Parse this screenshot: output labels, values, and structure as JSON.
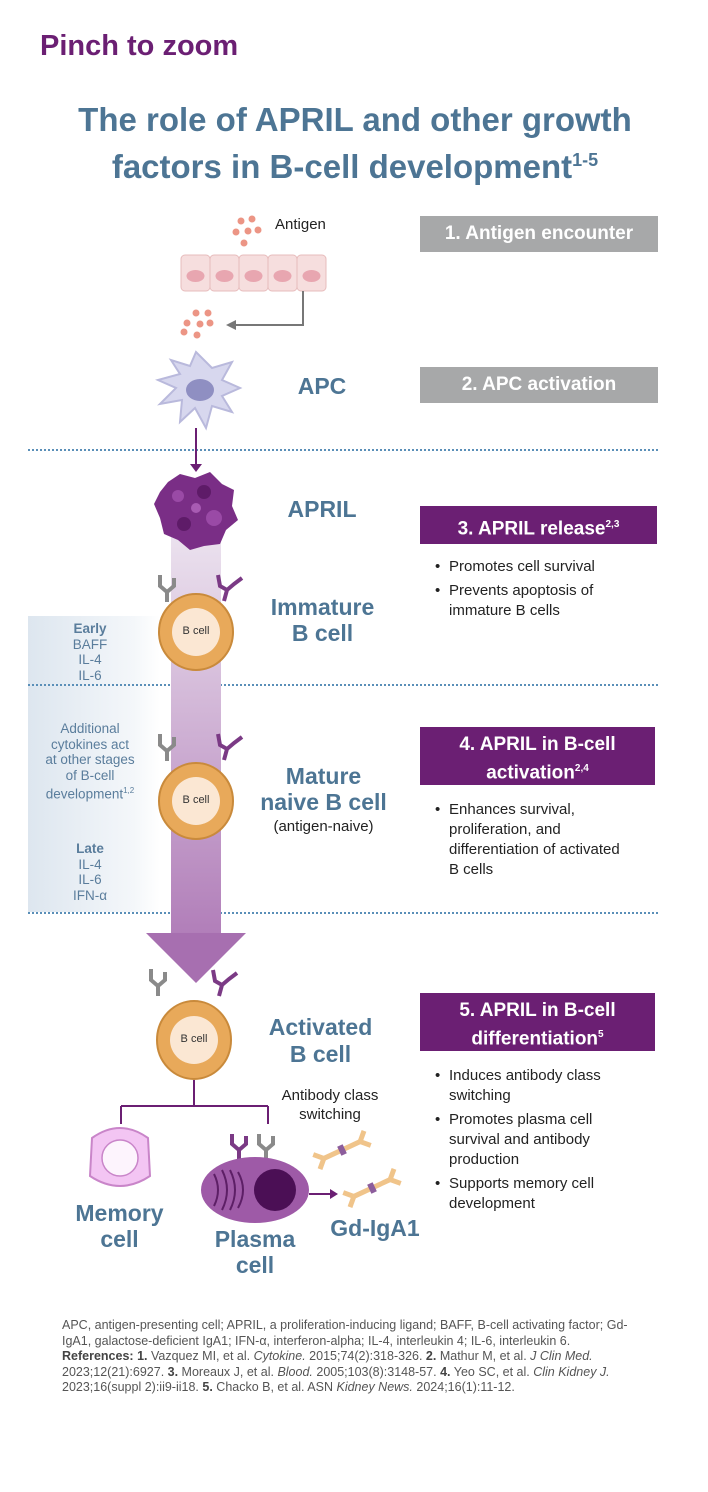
{
  "pinch": "Pinch to zoom",
  "title": {
    "line1": "The role of APRIL and other growth",
    "line2": "factors in B-cell development",
    "sup": "1-5"
  },
  "labels": {
    "antigen": "Antigen",
    "apc": "APC",
    "april": "APRIL",
    "immature_1": "Immature",
    "immature_2": "B cell",
    "mature_1": "Mature",
    "mature_2": "naive B cell",
    "mature_sub": "(antigen-naive)",
    "activated_1": "Activated",
    "activated_2": "B cell",
    "bcell": "B cell",
    "antibody_1": "Antibody class",
    "antibody_2": "switching",
    "memory_1": "Memory",
    "memory_2": "cell",
    "plasma_1": "Plasma",
    "plasma_2": "cell",
    "gdiga1": "Gd-IgA1"
  },
  "side": {
    "early_hd": "Early",
    "early_items": [
      "BAFF",
      "IL-4",
      "IL-6"
    ],
    "note_1": "Additional",
    "note_2": "cytokines act",
    "note_3": "at other stages",
    "note_4": "of B-cell",
    "note_5": "development",
    "note_sup": "1,2",
    "late_hd": "Late",
    "late_items": [
      "IL-4",
      "IL-6",
      "IFN-α"
    ]
  },
  "steps": {
    "s1": "1. Antigen encounter",
    "s2": "2. APC activation",
    "s3": "3. APRIL release",
    "s3_sup": "2,3",
    "s3_bullets": [
      "Promotes cell survival",
      "Prevents apoptosis of immature B cells"
    ],
    "s4_1": "4. APRIL in B-cell",
    "s4_2": "activation",
    "s4_sup": "2,4",
    "s4_bullets": [
      "Enhances survival, proliferation, and differentiation of activated B cells"
    ],
    "s5_1": "5. APRIL in B-cell",
    "s5_2": "differentiation",
    "s5_sup": "5",
    "s5_bullets": [
      "Induces antibody class switching",
      "Promotes plasma cell survival and antibody production",
      "Supports memory cell development"
    ]
  },
  "footer": {
    "abbrev": "APC, antigen-presenting cell; APRIL, a proliferation-inducing ligand; BAFF, B-cell activating factor; Gd-IgA1, galactose-deficient IgA1; IFN-α, interferon-alpha; IL-4, interleukin 4; IL-6, interleukin 6.",
    "ref_hd": "References:",
    "r1_n": "1.",
    "r1_a": " Vazquez MI, et al. ",
    "r1_j": "Cytokine.",
    "r1_b": " 2015;74(2):318-326. ",
    "r2_n": "2.",
    "r2_a": " Mathur M, et al. ",
    "r2_j": "J Clin Med.",
    "r2_b": " 2023;12(21):6927. ",
    "r3_n": "3.",
    "r3_a": " Moreaux J, et al. ",
    "r3_j": "Blood.",
    "r3_b": " 2005;103(8):3148-57. ",
    "r4_n": "4.",
    "r4_a": " Yeo SC, et al. ",
    "r4_j": "Clin Kidney J.",
    "r4_b": " 2023;16(suppl 2):ii9-ii18. ",
    "r5_n": "5.",
    "r5_a": " Chacko B, et al. ASN ",
    "r5_j": "Kidney News.",
    "r5_b": " 2024;16(1):11-12."
  },
  "colors": {
    "purple": "#6b1f73",
    "blue_label": "#4d7594",
    "gray_box": "#a7a8a9",
    "cell_orange": "#e8a95a",
    "dotted_line": "#5a8fb8"
  }
}
